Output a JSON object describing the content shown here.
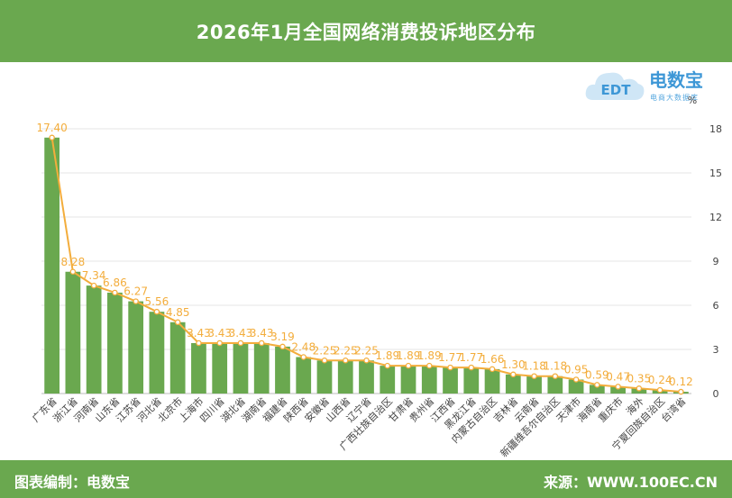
{
  "header": {
    "title": "2026年1月全国网络消费投诉地区分布"
  },
  "logo": {
    "brand": "电数宝",
    "sub": "电商大数据库",
    "badge": "EDT"
  },
  "footer": {
    "left": "图表编制：电数宝",
    "right": "来源：WWW.100EC.CN"
  },
  "colors": {
    "header_bg": "#6aa84f",
    "bar": "#6aa84f",
    "line": "#f3ad3c",
    "label": "#f3ad3c",
    "logo": "#3d97d6"
  },
  "chart_data": {
    "type": "bar",
    "title": "2026年1月全国网络消费投诉地区分布",
    "unit": "%",
    "ylim": [
      0,
      18
    ],
    "yticks": [
      0,
      3,
      6,
      9,
      12,
      15,
      18
    ],
    "y_axis_side": "right",
    "grid": true,
    "categories": [
      "广东省",
      "浙江省",
      "河南省",
      "山东省",
      "江苏省",
      "河北省",
      "北京市",
      "上海市",
      "四川省",
      "湖北省",
      "湖南省",
      "福建省",
      "陕西省",
      "安徽省",
      "山西省",
      "辽宁省",
      "广西壮族自治区",
      "甘肃省",
      "贵州省",
      "江西省",
      "黑龙江省",
      "内蒙古自治区",
      "吉林省",
      "云南省",
      "新疆维吾尔自治区",
      "天津市",
      "海南省",
      "重庆市",
      "海外",
      "宁夏回族自治区",
      "台湾省"
    ],
    "values": [
      17.4,
      8.28,
      7.34,
      6.86,
      6.27,
      5.56,
      4.85,
      3.43,
      3.43,
      3.43,
      3.43,
      3.19,
      2.48,
      2.25,
      2.25,
      2.25,
      1.89,
      1.89,
      1.89,
      1.77,
      1.77,
      1.66,
      1.3,
      1.18,
      1.18,
      0.95,
      0.59,
      0.47,
      0.35,
      0.24,
      0.12
    ],
    "overlay_line": true
  }
}
